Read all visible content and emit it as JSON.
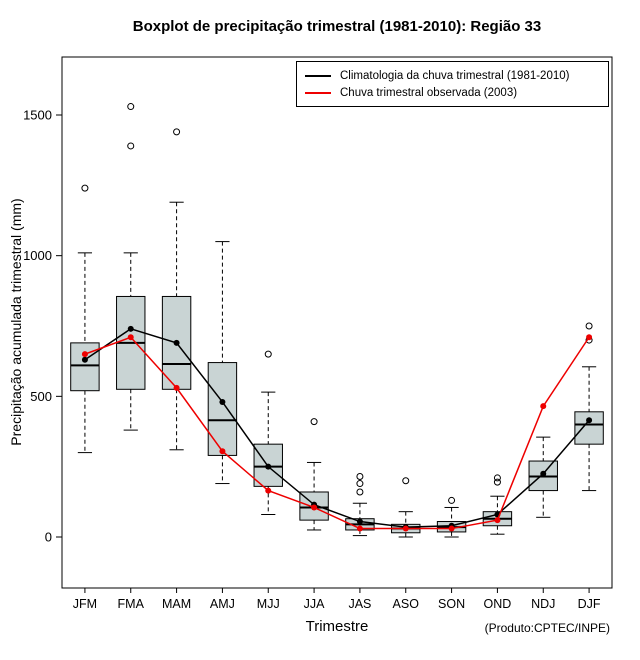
{
  "footnote": "(Produto:CPTEC/INPE)",
  "chart_data": {
    "type": "boxplot",
    "title": "Boxplot de precipitação trimestral (1981-2010): Região 33",
    "xlabel": "Trimestre",
    "ylabel": "Precipitação acumulada trimestral (mm)",
    "ylim": [
      -180,
      1700
    ],
    "yticks": [
      0,
      500,
      1000,
      1500
    ],
    "grid": false,
    "legend_position": "top-right",
    "box_fill": "#c9d4d4",
    "categories": [
      "JFM",
      "FMA",
      "MAM",
      "AMJ",
      "MJJ",
      "JJA",
      "JAS",
      "ASO",
      "SON",
      "OND",
      "NDJ",
      "DJF"
    ],
    "boxes": [
      {
        "whislo": 300,
        "q1": 520,
        "med": 610,
        "q3": 690,
        "whishi": 1010,
        "outliers": [
          1240
        ]
      },
      {
        "whislo": 380,
        "q1": 525,
        "med": 690,
        "q3": 855,
        "whishi": 1010,
        "outliers": [
          1390,
          1530
        ]
      },
      {
        "whislo": 310,
        "q1": 525,
        "med": 615,
        "q3": 855,
        "whishi": 1190,
        "outliers": [
          1440
        ]
      },
      {
        "whislo": 190,
        "q1": 290,
        "med": 415,
        "q3": 620,
        "whishi": 1050,
        "outliers": []
      },
      {
        "whislo": 80,
        "q1": 180,
        "med": 250,
        "q3": 330,
        "whishi": 515,
        "outliers": [
          650
        ]
      },
      {
        "whislo": 25,
        "q1": 60,
        "med": 105,
        "q3": 160,
        "whishi": 265,
        "outliers": [
          410
        ]
      },
      {
        "whislo": 5,
        "q1": 25,
        "med": 45,
        "q3": 65,
        "whishi": 120,
        "outliers": [
          160,
          190,
          215
        ]
      },
      {
        "whislo": 0,
        "q1": 15,
        "med": 30,
        "q3": 45,
        "whishi": 90,
        "outliers": [
          200
        ]
      },
      {
        "whislo": 0,
        "q1": 18,
        "med": 35,
        "q3": 55,
        "whishi": 105,
        "outliers": [
          130
        ]
      },
      {
        "whislo": 10,
        "q1": 40,
        "med": 65,
        "q3": 90,
        "whishi": 145,
        "outliers": [
          195,
          210
        ]
      },
      {
        "whislo": 70,
        "q1": 165,
        "med": 215,
        "q3": 270,
        "whishi": 355,
        "outliers": []
      },
      {
        "whislo": 165,
        "q1": 330,
        "med": 400,
        "q3": 445,
        "whishi": 605,
        "outliers": [
          700,
          750
        ]
      }
    ],
    "series": [
      {
        "name": "Climatologia da chuva trimestral (1981-2010)",
        "color": "#000000",
        "values": [
          630,
          740,
          690,
          480,
          250,
          115,
          55,
          35,
          40,
          80,
          225,
          415
        ]
      },
      {
        "name": "Chuva trimestral observada (2003)",
        "color": "#ee0000",
        "values": [
          650,
          710,
          530,
          305,
          165,
          105,
          30,
          30,
          30,
          60,
          465,
          710
        ]
      }
    ]
  }
}
